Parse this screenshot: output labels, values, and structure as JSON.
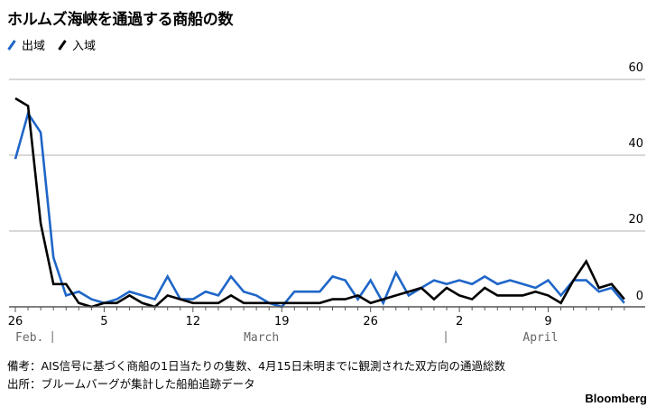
{
  "title": "ホルムズ海峡を通過する商船の数",
  "legend": [
    {
      "label": "出域",
      "color": "#1f66c8"
    },
    {
      "label": "入域",
      "color": "#000000"
    }
  ],
  "notes": {
    "remark": "備考：AIS信号に基づく商船の1日当たりの隻数、4月15日未明までに観測された双方向の通過総数",
    "source": "出所：ブルームバーグが集計した船舶追跡データ"
  },
  "brand": "Bloomberg",
  "colors": {
    "outbound": "#1f66c8",
    "inbound": "#000000",
    "grid": "#cccccc",
    "axis": "#555555"
  },
  "chart_data": {
    "type": "line",
    "title": "ホルムズ海峡を通過する商船の数",
    "xlabel": "",
    "ylabel": "",
    "ylim": [
      0,
      60
    ],
    "yticks": [
      0,
      20,
      40,
      60
    ],
    "grid": true,
    "legend_position": "top-left",
    "x_start": "Feb 26",
    "x_end": "Apr 15",
    "xtick_labels": [
      {
        "day": 0,
        "label": "26"
      },
      {
        "day": 7,
        "label": "5"
      },
      {
        "day": 14,
        "label": "12"
      },
      {
        "day": 21,
        "label": "19"
      },
      {
        "day": 28,
        "label": "26"
      },
      {
        "day": 35,
        "label": "2"
      },
      {
        "day": 42,
        "label": "9"
      }
    ],
    "month_labels": [
      {
        "day": 1,
        "label": "Feb."
      },
      {
        "day": 18,
        "label": "March"
      },
      {
        "day": 40,
        "label": "April"
      }
    ],
    "month_separators": [
      3,
      34
    ],
    "x": [
      "Feb 26",
      "Feb 27",
      "Feb 28",
      "Mar 1",
      "Mar 2",
      "Mar 3",
      "Mar 4",
      "Mar 5",
      "Mar 6",
      "Mar 7",
      "Mar 8",
      "Mar 9",
      "Mar 10",
      "Mar 11",
      "Mar 12",
      "Mar 13",
      "Mar 14",
      "Mar 15",
      "Mar 16",
      "Mar 17",
      "Mar 18",
      "Mar 19",
      "Mar 20",
      "Mar 21",
      "Mar 22",
      "Mar 23",
      "Mar 24",
      "Mar 25",
      "Mar 26",
      "Mar 27",
      "Mar 28",
      "Mar 29",
      "Mar 30",
      "Mar 31",
      "Apr 1",
      "Apr 2",
      "Apr 3",
      "Apr 4",
      "Apr 5",
      "Apr 6",
      "Apr 7",
      "Apr 8",
      "Apr 9",
      "Apr 10",
      "Apr 11",
      "Apr 12",
      "Apr 13",
      "Apr 14",
      "Apr 15"
    ],
    "series": [
      {
        "name": "出域",
        "color": "#1f66c8",
        "values": [
          39,
          51,
          46,
          13,
          3,
          4,
          2,
          1,
          2,
          4,
          3,
          2,
          8,
          2,
          2,
          4,
          3,
          8,
          4,
          3,
          1,
          0,
          4,
          4,
          4,
          8,
          7,
          2,
          7,
          1,
          9,
          3,
          5,
          7,
          6,
          7,
          6,
          8,
          6,
          7,
          6,
          5,
          7,
          3,
          7,
          7,
          4,
          5,
          1
        ]
      },
      {
        "name": "入域",
        "color": "#000000",
        "values": [
          55,
          53,
          22,
          6,
          6,
          1,
          0,
          1,
          1,
          3,
          1,
          0,
          3,
          2,
          1,
          1,
          1,
          3,
          1,
          1,
          1,
          1,
          1,
          1,
          1,
          2,
          2,
          3,
          1,
          2,
          3,
          4,
          5,
          2,
          5,
          3,
          2,
          5,
          3,
          3,
          3,
          4,
          3,
          1,
          7,
          12,
          5,
          6,
          2
        ]
      }
    ]
  }
}
